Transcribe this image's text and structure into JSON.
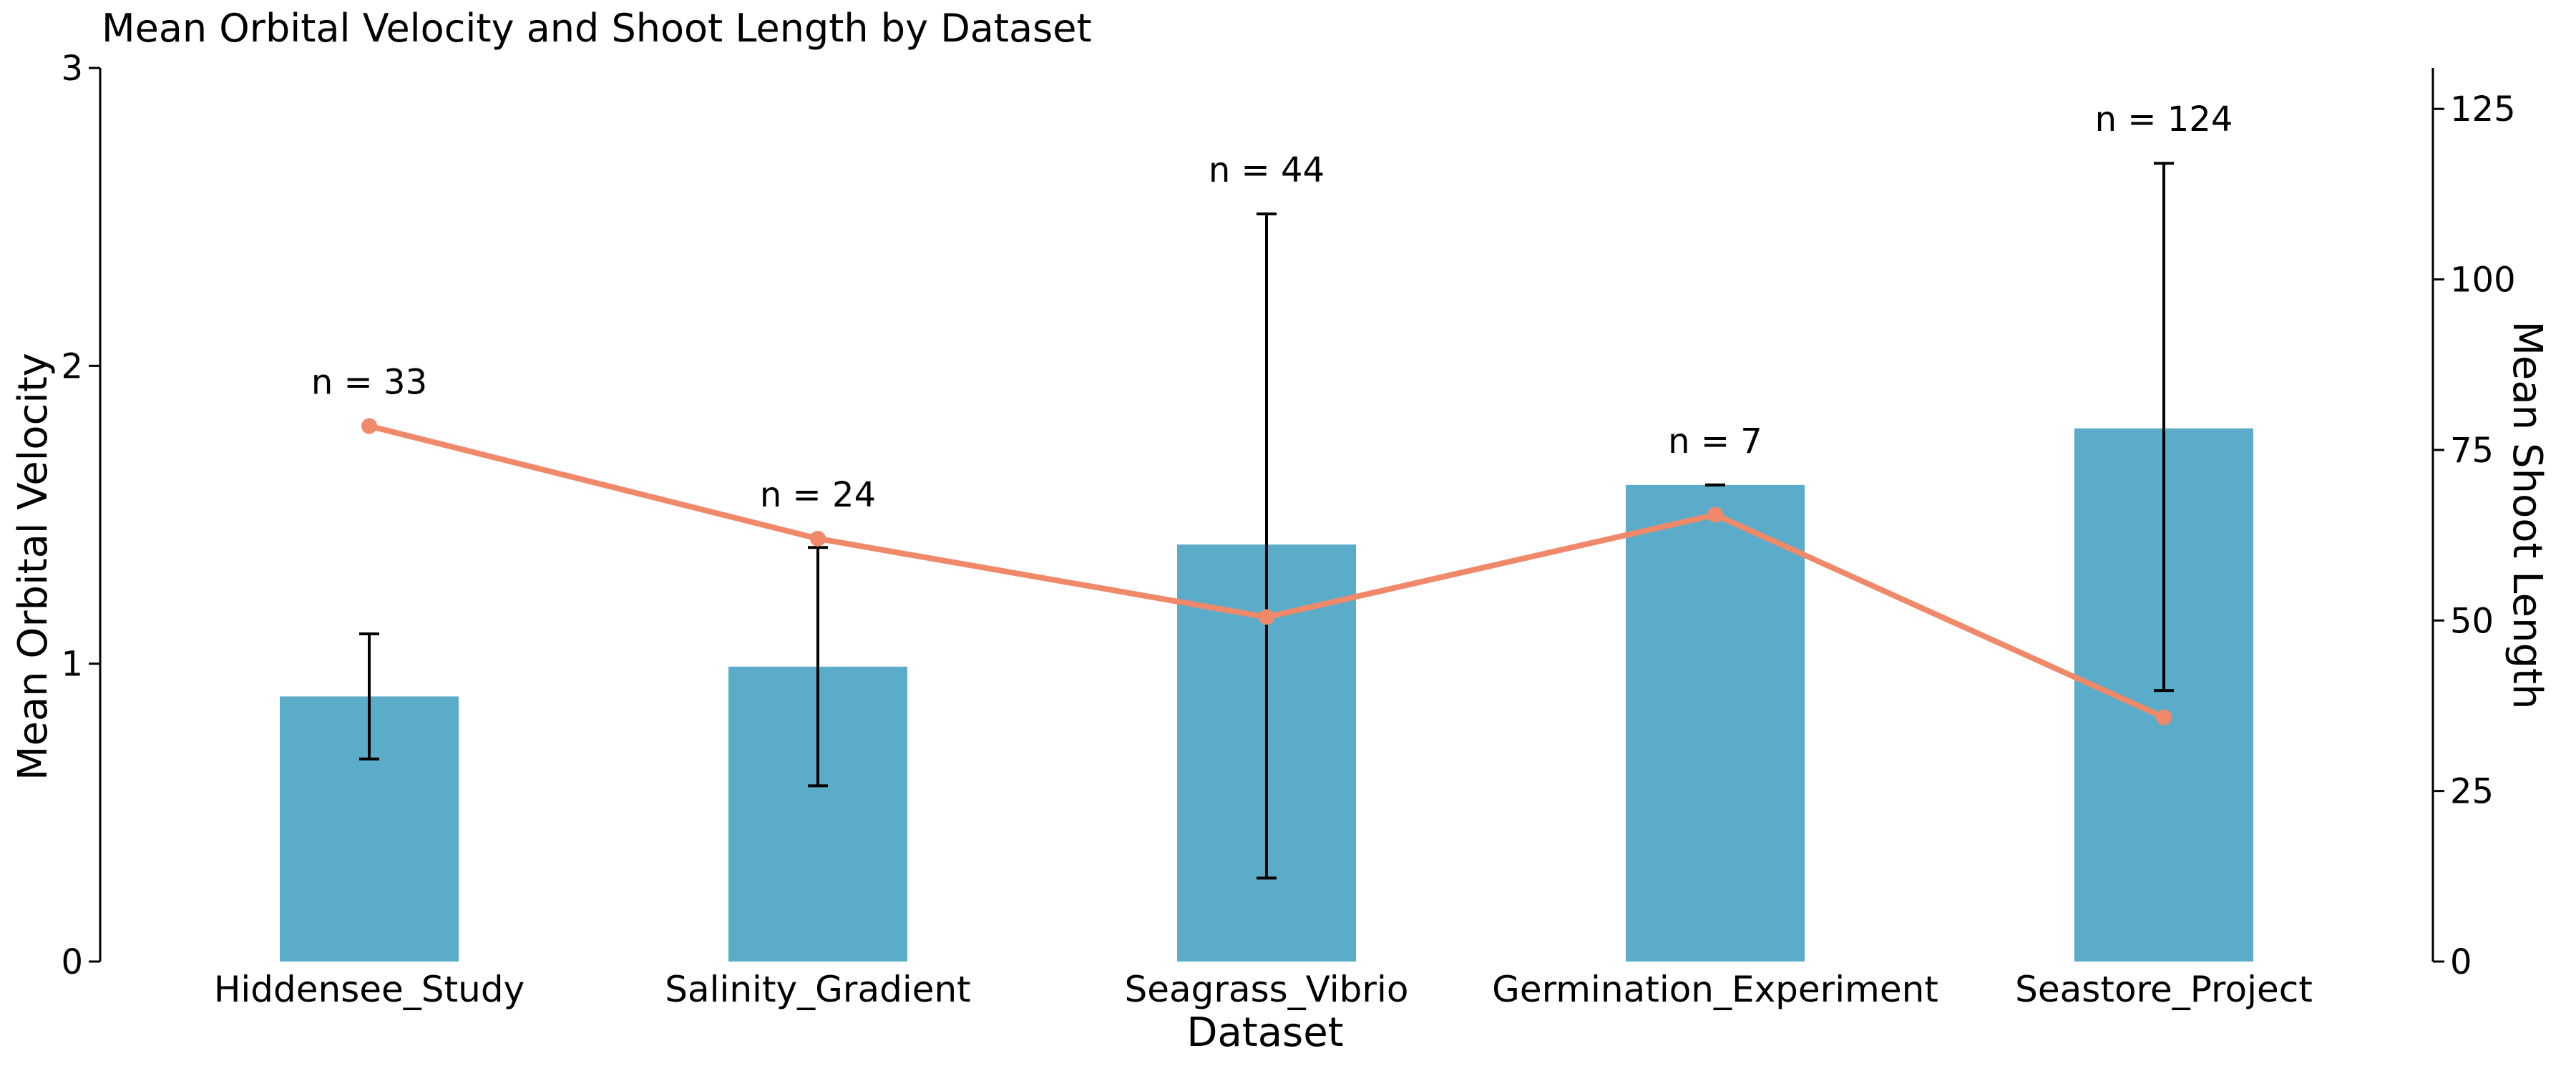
{
  "chart_data": {
    "type": "bar",
    "title": "Mean Orbital Velocity and Shoot Length by Dataset",
    "xlabel": "Dataset",
    "ylabel": "Mean Orbital Velocity",
    "y2label": "Mean Shoot Length",
    "categories": [
      "Hiddensee_Study",
      "Salinity_Gradient",
      "Seagrass_Vibrio",
      "Germination_Experiment",
      "Seastore_Project"
    ],
    "ylim": [
      0,
      3
    ],
    "y2lim": [
      0,
      131
    ],
    "yticks": [
      "0",
      "1",
      "2",
      "3"
    ],
    "y2ticks": [
      "0",
      "25",
      "50",
      "75",
      "100",
      "125"
    ],
    "grid": false,
    "series": [
      {
        "type": "bar",
        "axis": "left",
        "color": "#5aacc8",
        "values": [
          0.89,
          0.99,
          1.4,
          1.6,
          1.79
        ],
        "error_low": [
          0.68,
          0.59,
          0.28,
          1.6,
          0.91
        ],
        "error_high": [
          1.1,
          1.39,
          2.51,
          1.6,
          2.68
        ]
      },
      {
        "type": "line",
        "axis": "right",
        "color": "#f0896a",
        "values": [
          78.5,
          62.0,
          50.5,
          65.5,
          35.8
        ]
      }
    ],
    "annotations": [
      "n = 33",
      "n = 24",
      "n = 44",
      "n = 7",
      "n = 124"
    ]
  }
}
